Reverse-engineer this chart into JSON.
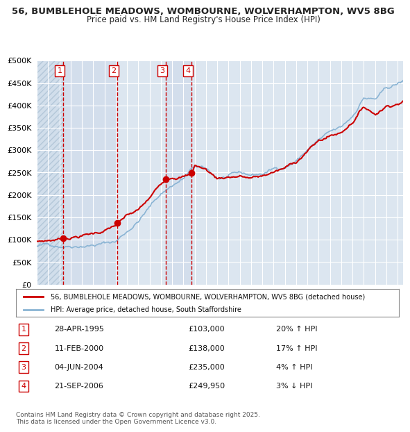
{
  "title_line1": "56, BUMBLEHOLE MEADOWS, WOMBOURNE, WOLVERHAMPTON, WV5 8BG",
  "title_line2": "Price paid vs. HM Land Registry's House Price Index (HPI)",
  "legend_red": "56, BUMBLEHOLE MEADOWS, WOMBOURNE, WOLVERHAMPTON, WV5 8BG (detached house)",
  "legend_blue": "HPI: Average price, detached house, South Staffordshire",
  "transactions": [
    {
      "num": 1,
      "date": "28-APR-1995",
      "price": 103000,
      "pct": "20%",
      "dir": "↑",
      "year": 1995.32
    },
    {
      "num": 2,
      "date": "11-FEB-2000",
      "price": 138000,
      "pct": "17%",
      "dir": "↑",
      "year": 2000.12
    },
    {
      "num": 3,
      "date": "04-JUN-2004",
      "price": 235000,
      "pct": "4%",
      "dir": "↑",
      "year": 2004.42
    },
    {
      "num": 4,
      "date": "21-SEP-2006",
      "price": 249950,
      "pct": "3%",
      "dir": "↓",
      "year": 2006.72
    }
  ],
  "footnote": "Contains HM Land Registry data © Crown copyright and database right 2025.\nThis data is licensed under the Open Government Licence v3.0.",
  "background_color": "#ffffff",
  "plot_bg_color": "#dce6f0",
  "hatch_color": "#c0cfe0",
  "grid_color": "#ffffff",
  "red_color": "#cc0000",
  "blue_color": "#8ab4d4",
  "ylim": [
    0,
    500000
  ],
  "yticks": [
    0,
    50000,
    100000,
    150000,
    200000,
    250000,
    300000,
    350000,
    400000,
    450000,
    500000
  ],
  "xmin": 1993.0,
  "xmax": 2025.5
}
